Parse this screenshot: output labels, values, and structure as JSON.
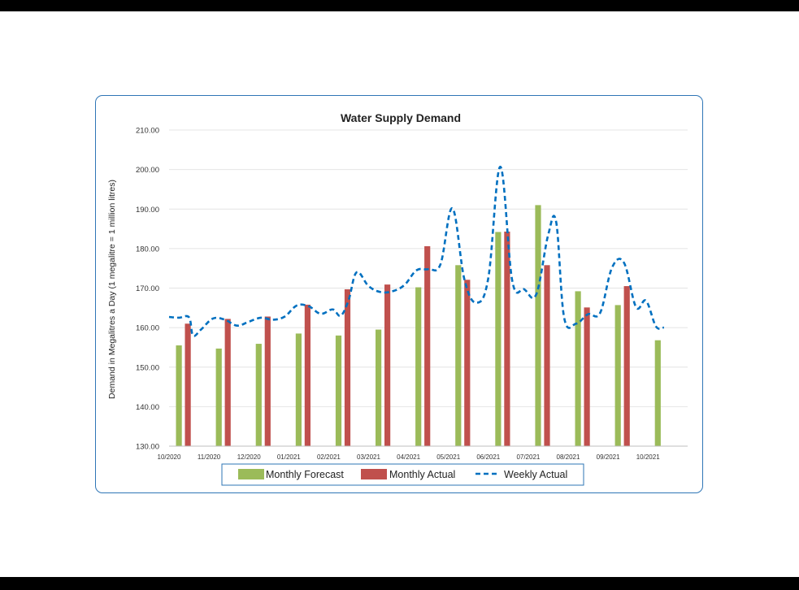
{
  "chart_data": {
    "type": "bar",
    "title": "Water Supply Demand",
    "xlabel": "",
    "ylabel": "Demand in Megalitres a Day (1 megalitre = 1 million litres)",
    "ylim": [
      130,
      210
    ],
    "yticks": [
      "130.00",
      "140.00",
      "150.00",
      "160.00",
      "170.00",
      "180.00",
      "190.00",
      "200.00",
      "210.00"
    ],
    "categories": [
      "10/2020",
      "11/2020",
      "12/2020",
      "01/2021",
      "02/2021",
      "03/2021",
      "04/2021",
      "05/2021",
      "06/2021",
      "07/2021",
      "08/2021",
      "09/2021",
      "10/2021"
    ],
    "grid": true,
    "legend_position": "bottom",
    "series": [
      {
        "name": "Monthly Forecast",
        "kind": "bar",
        "color": "#9BBB59",
        "values": [
          155.5,
          154.7,
          155.9,
          158.5,
          158.0,
          159.5,
          170.2,
          175.8,
          184.2,
          191.0,
          169.2,
          165.7,
          156.8
        ]
      },
      {
        "name": "Monthly Actual",
        "kind": "bar",
        "color": "#C0504D",
        "values": [
          161.0,
          162.2,
          162.8,
          165.8,
          169.7,
          170.9,
          180.6,
          172.1,
          184.3,
          175.8,
          165.1,
          170.5,
          null
        ]
      },
      {
        "name": "Weekly Actual",
        "kind": "line",
        "style": "dashed",
        "color": "#0070C0",
        "x": [
          0.0,
          0.25,
          0.5,
          0.6,
          0.8,
          1.1,
          1.4,
          1.7,
          2.0,
          2.3,
          2.6,
          2.9,
          3.2,
          3.5,
          3.8,
          4.1,
          4.3,
          4.5,
          4.7,
          5.0,
          5.3,
          5.6,
          5.9,
          6.2,
          6.5,
          6.8,
          7.1,
          7.4,
          7.7,
          8.0,
          8.3,
          8.6,
          8.9,
          9.2,
          9.5,
          9.7,
          9.9,
          10.2,
          10.5,
          10.8,
          11.1,
          11.4,
          11.7,
          11.95,
          12.2,
          12.4
        ],
        "values": [
          162.7,
          162.5,
          162.6,
          158.0,
          159.5,
          162.3,
          162.0,
          160.5,
          161.5,
          162.5,
          162.0,
          162.8,
          165.6,
          165.4,
          163.5,
          164.6,
          163.0,
          167.0,
          174.0,
          170.5,
          169.0,
          169.2,
          170.8,
          174.5,
          174.8,
          176.0,
          190.2,
          172.2,
          166.3,
          172.6,
          200.7,
          171.8,
          169.7,
          168.4,
          183.5,
          186.7,
          162.5,
          161.0,
          163.4,
          163.7,
          175.2,
          176.4,
          165.2,
          166.8,
          160.3,
          160.0
        ]
      }
    ]
  }
}
